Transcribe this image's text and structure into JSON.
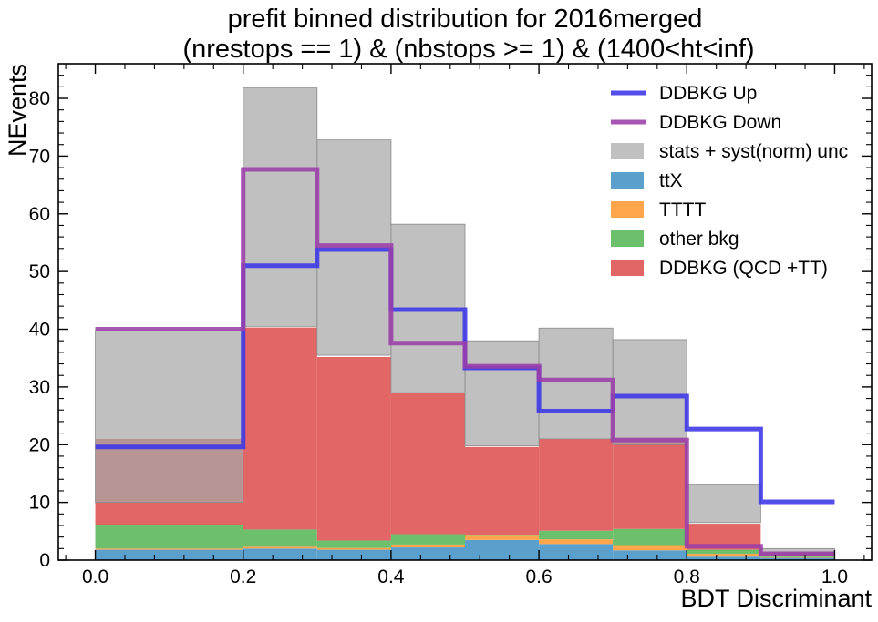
{
  "chart_data": {
    "type": "bar",
    "title": [
      "prefit binned distribution for 2016merged",
      "(nrestops == 1) & (nbstops >= 1) & (1400<ht<inf)"
    ],
    "xlabel": "BDT Discriminant",
    "ylabel": "NEvents",
    "xlim": [
      -0.05,
      1.05
    ],
    "ylim": [
      0,
      86
    ],
    "x_ticks": [
      "0.0",
      "0.2",
      "0.4",
      "0.6",
      "0.8",
      "1.0"
    ],
    "y_ticks": [
      "0",
      "10",
      "20",
      "30",
      "40",
      "50",
      "60",
      "70",
      "80"
    ],
    "bin_edges": [
      0.0,
      0.2,
      0.3,
      0.4,
      0.5,
      0.6,
      0.7,
      0.8,
      0.9,
      1.0
    ],
    "stack": [
      {
        "name": "ttX",
        "color": "#5b9fcc",
        "values": [
          1.8,
          2.0,
          1.8,
          2.2,
          3.5,
          2.8,
          1.7,
          0.6,
          0.4
        ]
      },
      {
        "name": "TTTT",
        "color": "#ffa64d",
        "values": [
          0.2,
          0.3,
          0.3,
          0.5,
          0.7,
          0.8,
          0.9,
          0.5,
          0.1
        ]
      },
      {
        "name": "other bkg",
        "color": "#6cbf6b",
        "values": [
          4.0,
          3.0,
          1.3,
          1.8,
          0.2,
          1.5,
          2.8,
          0.7,
          0.2
        ]
      },
      {
        "name": "DDBKG (QCD +TT)",
        "color": "#e26666",
        "values": [
          15.0,
          35.0,
          31.8,
          24.5,
          15.2,
          15.9,
          15.6,
          4.5,
          0.7
        ]
      }
    ],
    "uncertainty_band": {
      "name": "stats + syst(norm) unc",
      "color": "#a8a8a8",
      "low": [
        10.0,
        40.5,
        35.5,
        29.0,
        19.8,
        21.0,
        20.0,
        6.5,
        1.0
      ],
      "high": [
        39.8,
        81.8,
        72.8,
        58.2,
        38.0,
        40.2,
        38.2,
        13.0,
        2.0
      ]
    },
    "lines": [
      {
        "name": "DDBKG Up",
        "color": "#3b35e6",
        "values": [
          19.6,
          51.0,
          53.8,
          43.4,
          33.3,
          25.8,
          28.4,
          22.7,
          10.1
        ]
      },
      {
        "name": "DDBKG Down",
        "color": "#9b3ea8",
        "values": [
          40.0,
          67.7,
          54.5,
          37.6,
          33.6,
          31.2,
          20.8,
          2.4,
          1.1
        ]
      }
    ],
    "legend_position": "top-right",
    "legend": [
      "DDBKG Up",
      "DDBKG Down",
      "stats + syst(norm) unc",
      "ttX",
      "TTTT",
      "other bkg",
      "DDBKG (QCD +TT)"
    ]
  }
}
